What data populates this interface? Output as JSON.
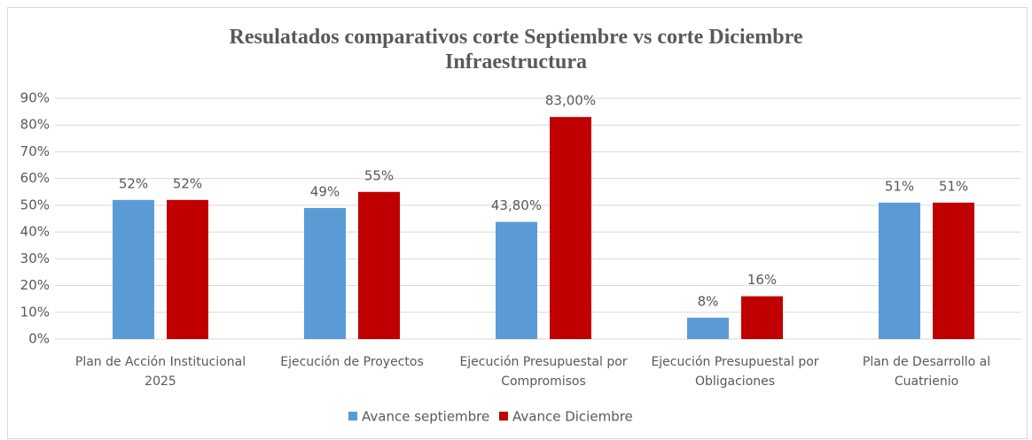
{
  "chart_data": {
    "type": "bar",
    "title": "Resulatados comparativos corte Septiembre vs corte Diciembre\nInfraestructura",
    "categories": [
      "Plan de Acción Institucional\n2025",
      "Ejecución de Proyectos",
      "Ejecución Presupuestal por\nCompromisos",
      "Ejecución Presupuestal por\nObligaciones",
      "Plan de Desarrollo al\nCuatrienio"
    ],
    "series": [
      {
        "name": "Avance septiembre",
        "color": "#5b9bd5",
        "values": [
          52,
          49,
          43.8,
          8,
          51
        ],
        "value_labels": [
          "52%",
          "49%",
          "43,80%",
          "8%",
          "51%"
        ]
      },
      {
        "name": "Avance Diciembre",
        "color": "#c00000",
        "values": [
          52,
          55,
          83,
          16,
          51
        ],
        "value_labels": [
          "52%",
          "55%",
          "83,00%",
          "16%",
          "51%"
        ]
      }
    ],
    "ylim": [
      0,
      90
    ],
    "yticks": [
      {
        "value": 0,
        "label": "0%"
      },
      {
        "value": 10,
        "label": "10%"
      },
      {
        "value": 20,
        "label": "20%"
      },
      {
        "value": 30,
        "label": "30%"
      },
      {
        "value": 40,
        "label": "40%"
      },
      {
        "value": 50,
        "label": "50%"
      },
      {
        "value": 60,
        "label": "60%"
      },
      {
        "value": 70,
        "label": "70%"
      },
      {
        "value": 80,
        "label": "80%"
      },
      {
        "value": 90,
        "label": "90%"
      }
    ],
    "grid": true,
    "legend": "bottom"
  }
}
